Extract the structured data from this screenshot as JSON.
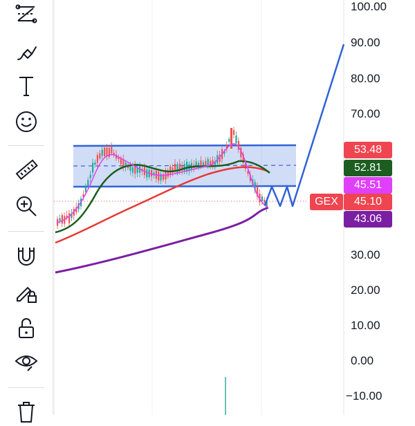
{
  "toolbar": {
    "tools": [
      {
        "name": "trend-line-tool",
        "icon": "trend-lines-icon"
      },
      {
        "name": "brush-tool",
        "icon": "brush-icon"
      },
      {
        "name": "text-tool",
        "icon": "text-icon"
      },
      {
        "name": "emoji-tool",
        "icon": "smiley-icon"
      },
      {
        "name": "ruler-tool",
        "icon": "ruler-icon"
      },
      {
        "name": "zoom-tool",
        "icon": "zoom-in-icon"
      },
      {
        "name": "magnet-tool",
        "icon": "magnet-icon"
      },
      {
        "name": "lock-drawings-tool",
        "icon": "pencil-lock-icon"
      },
      {
        "name": "lock-tool",
        "icon": "unlock-icon"
      },
      {
        "name": "hide-tool",
        "icon": "eye-icon"
      },
      {
        "name": "delete-tool",
        "icon": "trash-icon"
      }
    ]
  },
  "price_axis": {
    "ticks": [
      "100.00",
      "90.00",
      "80.00",
      "70.00",
      "30.00",
      "20.00",
      "10.00",
      "0.00",
      "−10.00"
    ]
  },
  "price_badges": {
    "b1": {
      "value": "53.48",
      "color": "#ef4550"
    },
    "b2": {
      "value": "52.81",
      "color": "#1b5e20"
    },
    "b3": {
      "value": "45.51",
      "color": "#e040fb"
    },
    "b4": {
      "value": "45.10",
      "color": "#ef4550"
    },
    "b5": {
      "value": "43.06",
      "color": "#7b1fa2"
    }
  },
  "gex_label": "GEX",
  "colors": {
    "up": "#26a69a",
    "down": "#ef5350",
    "channel": "#2f62d6",
    "ma_green": "#1b5e20",
    "ma_red": "#e53935",
    "ma_purple": "#7b1fa2",
    "ma_pink": "#e040fb"
  }
}
